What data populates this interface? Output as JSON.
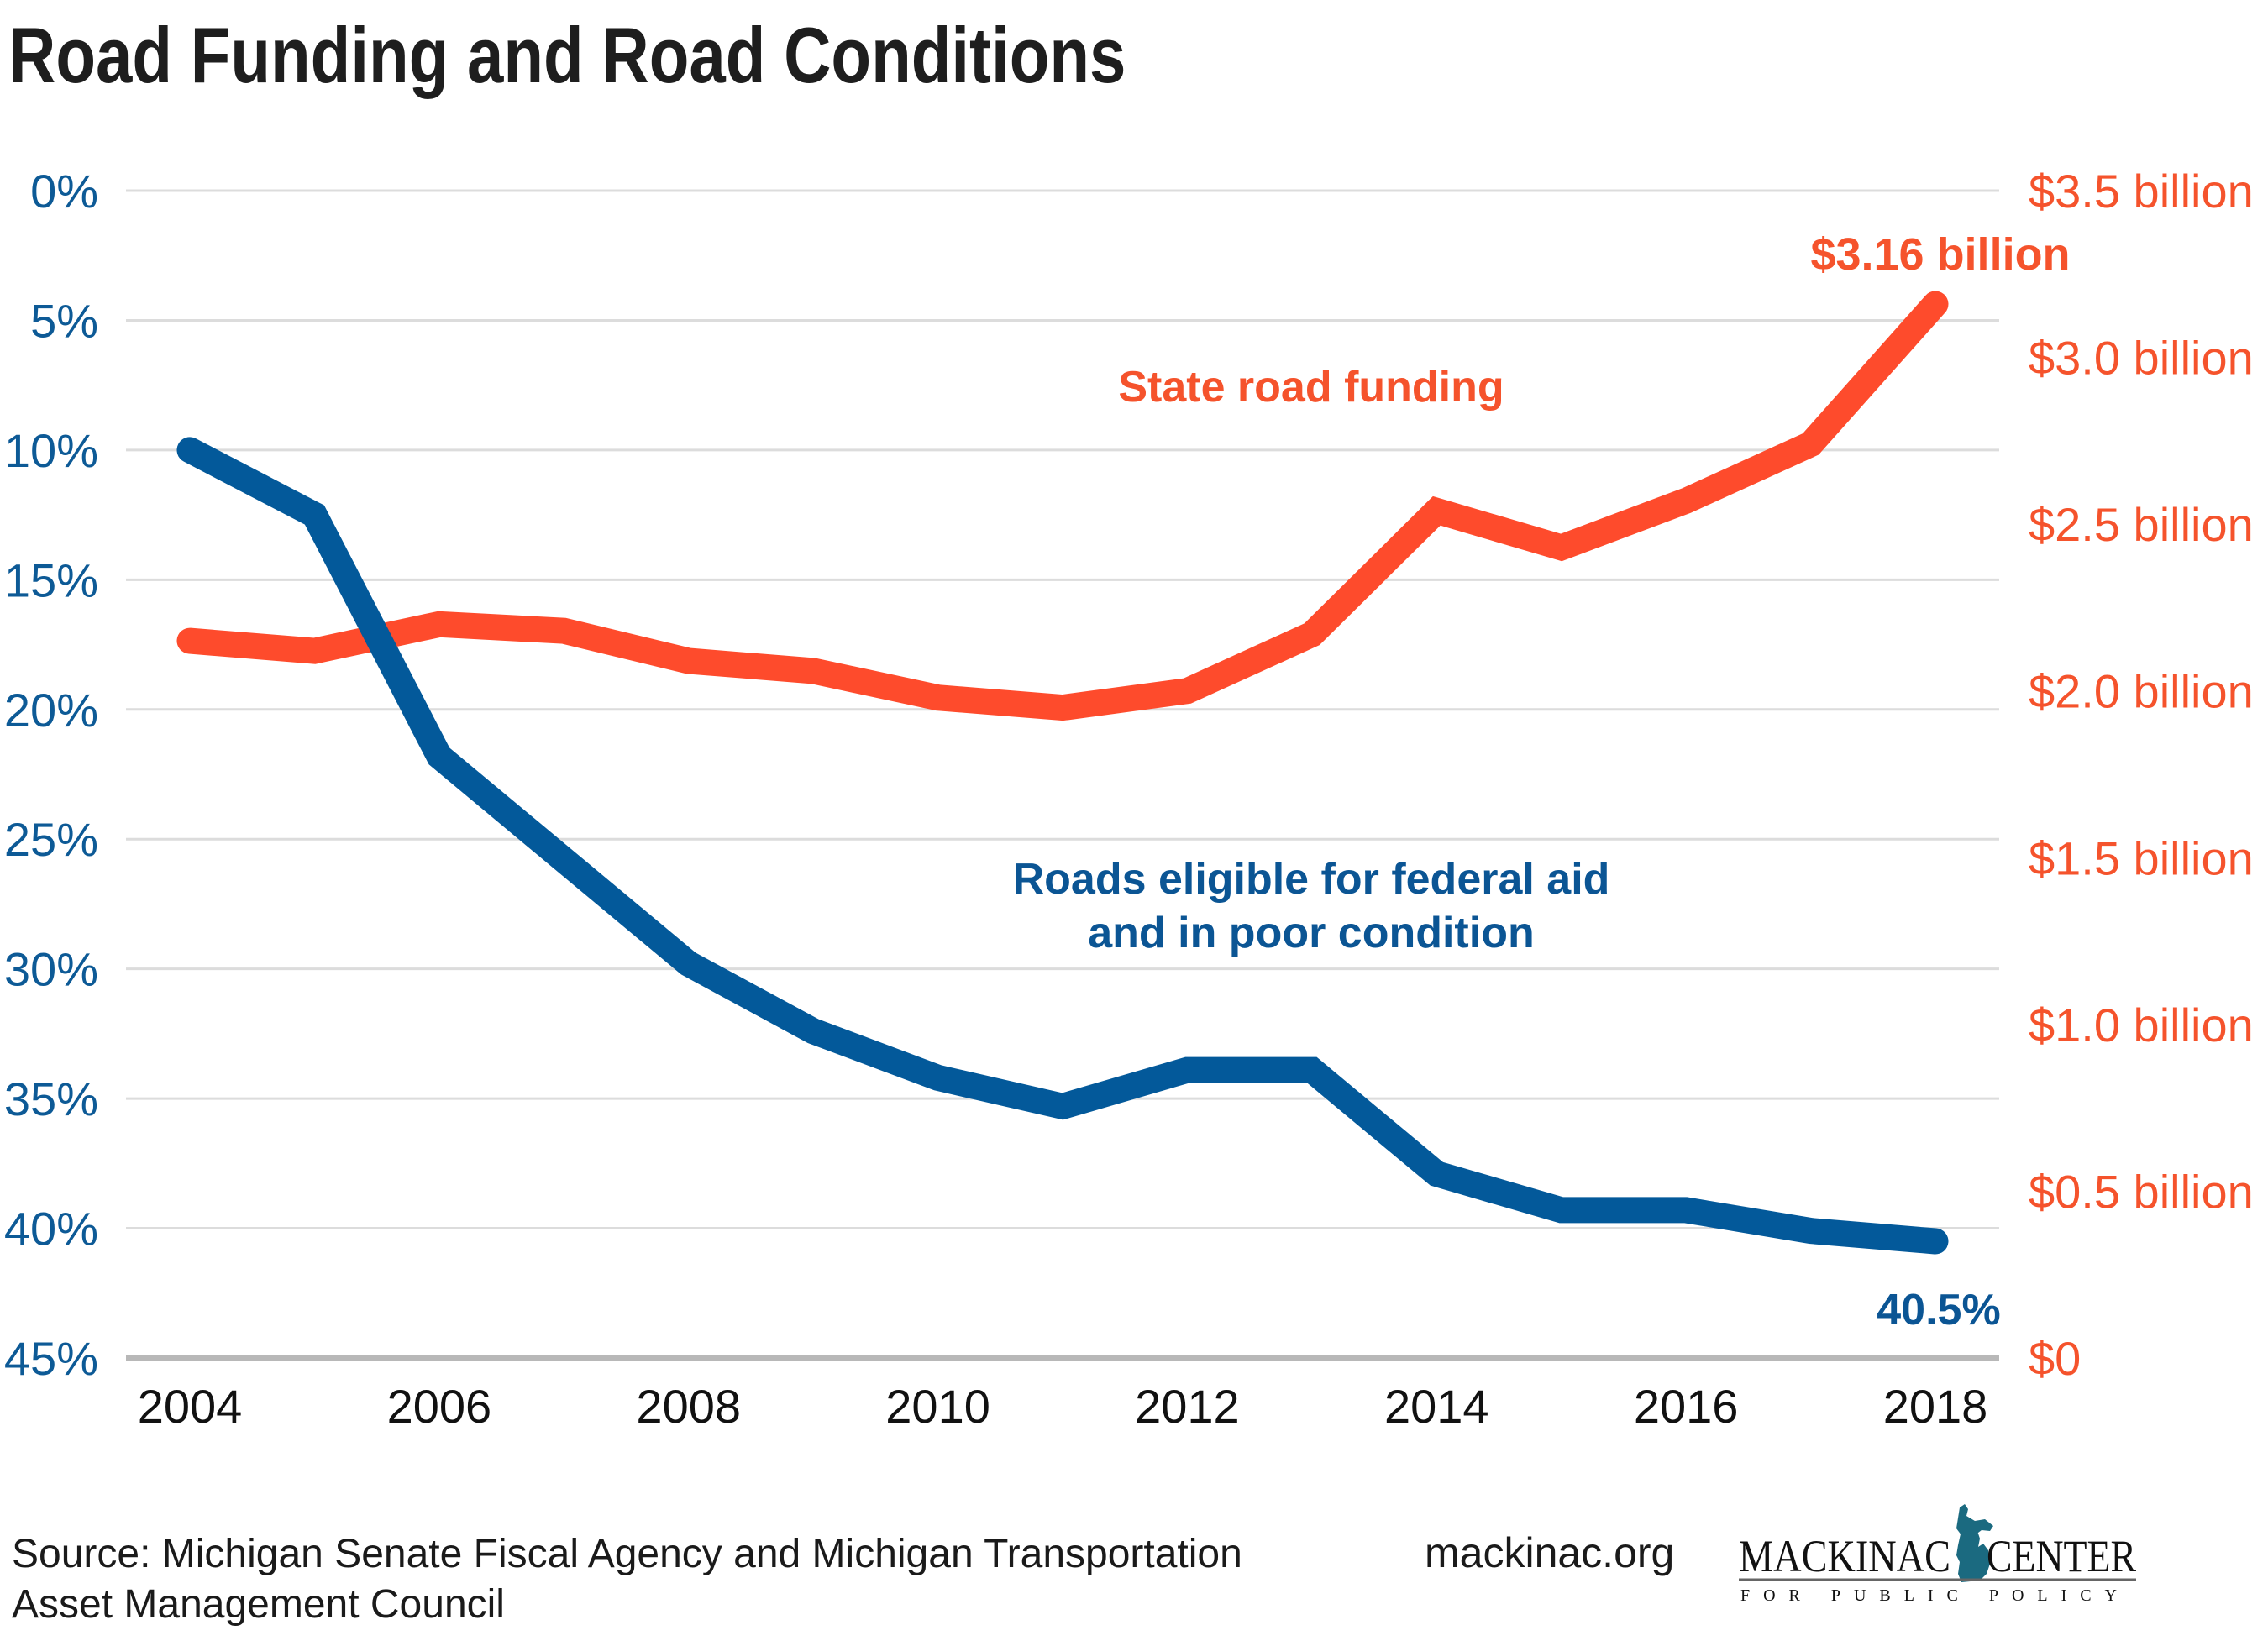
{
  "chart_data": {
    "type": "line",
    "title": "Road Funding and Road Conditions",
    "x": [
      2004,
      2005,
      2006,
      2007,
      2008,
      2009,
      2010,
      2011,
      2012,
      2013,
      2014,
      2015,
      2016,
      2017,
      2018
    ],
    "x_tick_labels": [
      "2004",
      "2006",
      "2008",
      "2010",
      "2012",
      "2014",
      "2016",
      "2018"
    ],
    "x_ticks": [
      2004,
      2006,
      2008,
      2010,
      2012,
      2014,
      2016,
      2018
    ],
    "left_axis": {
      "label": "",
      "range": [
        0,
        45
      ],
      "inverted": true,
      "ticks": [
        0,
        5,
        10,
        15,
        20,
        25,
        30,
        35,
        40,
        45
      ],
      "tick_labels": [
        "0%",
        "5%",
        "10%",
        "15%",
        "20%",
        "25%",
        "30%",
        "35%",
        "40%",
        "45%"
      ],
      "color": "#0d5a96"
    },
    "right_axis": {
      "label": "",
      "range": [
        0,
        3.5
      ],
      "ticks": [
        0,
        0.5,
        1.0,
        1.5,
        2.0,
        2.5,
        3.0,
        3.5
      ],
      "tick_labels": [
        "$0",
        "$0.5 billion",
        "$1.0 billion",
        "$1.5 billion",
        "$2.0 billion",
        "$2.5 billion",
        "$3.0 billion",
        "$3.5 billion"
      ],
      "color": "#f5532c"
    },
    "grid": true,
    "series": [
      {
        "name": "State road funding",
        "axis": "right",
        "unit": "billion USD",
        "color": "#fe4b2c",
        "values": [
          2.15,
          2.12,
          2.2,
          2.18,
          2.09,
          2.06,
          1.98,
          1.95,
          2.0,
          2.17,
          2.54,
          2.43,
          2.57,
          2.74,
          3.16
        ],
        "label_lines": [
          "State road funding"
        ],
        "end_label": "$3.16 billion"
      },
      {
        "name": "Roads eligible for federal aid and in poor condition",
        "axis": "left",
        "unit": "percent",
        "color": "#03599a",
        "values": [
          10.0,
          12.5,
          21.8,
          25.8,
          29.8,
          32.4,
          34.2,
          35.3,
          33.9,
          33.9,
          37.9,
          39.3,
          39.3,
          40.1,
          40.5
        ],
        "label_lines": [
          "Roads eligible for federal aid",
          "and in poor condition"
        ],
        "end_label": "40.5%"
      }
    ],
    "legend": "none (inline series labels)"
  },
  "footer": {
    "source_lines": [
      "Source: Michigan Senate Fiscal Agency and Michigan Transportation",
      "Asset Management Council"
    ],
    "website": "mackinac.org",
    "logo": {
      "left_word": "MACKINAC",
      "right_word": "CENTER",
      "tagline": "FOR PUBLIC POLICY",
      "icon": "michigan-map-icon",
      "icon_color": "#1b6a80"
    }
  }
}
